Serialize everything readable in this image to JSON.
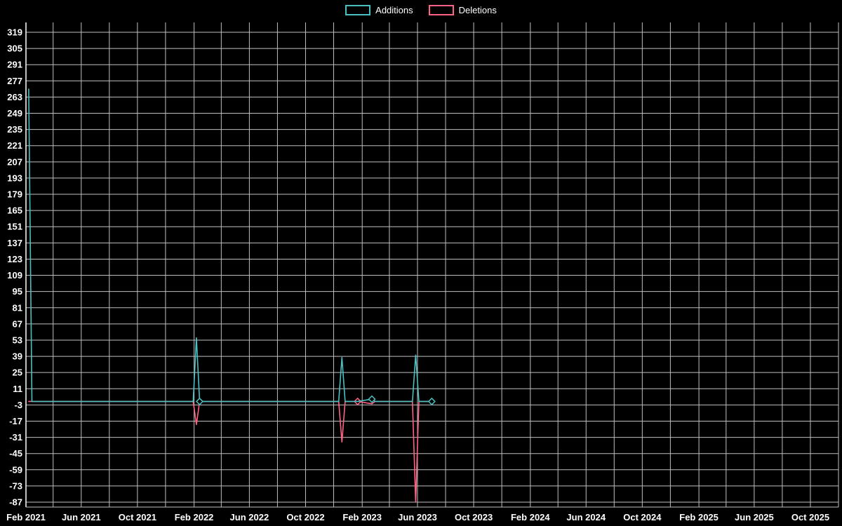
{
  "legend": {
    "items": [
      {
        "label": "Additions",
        "color": "#4bc0c0"
      },
      {
        "label": "Deletions",
        "color": "#ff6384"
      }
    ]
  },
  "chart_data": {
    "type": "line",
    "title": "",
    "legend_position": "top-center",
    "background_color": "#000000",
    "grid_color": "#bfbfbf",
    "axis_color": "#ffffff",
    "text_color": "#ffffff",
    "grid": true,
    "x_domain": [
      "2021-02-01",
      "2025-12-01"
    ],
    "x_tick_interval_months": 4,
    "x_grid_interval_months": 2,
    "x_tick_labels": [
      "Feb 2021",
      "Jun 2021",
      "Oct 2021",
      "Feb 2022",
      "Jun 2022",
      "Oct 2022",
      "Feb 2023",
      "Jun 2023",
      "Oct 2023",
      "Feb 2024",
      "Jun 2024",
      "Oct 2024",
      "Feb 2025",
      "Jun 2025",
      "Oct 2025"
    ],
    "y_ticks": [
      319,
      305,
      291,
      277,
      263,
      249,
      235,
      221,
      207,
      193,
      179,
      165,
      151,
      137,
      123,
      109,
      95,
      81,
      67,
      53,
      39,
      25,
      11,
      -3,
      -17,
      -31,
      -45,
      -59,
      -73,
      -87
    ],
    "ylim": [
      -91,
      328
    ],
    "series": [
      {
        "name": "Additions",
        "color": "#4bc0c0",
        "marker_shape": "diamond",
        "points": [
          [
            "2021-02-07",
            270
          ],
          [
            "2021-02-14",
            0
          ],
          [
            "2022-01-30",
            0
          ],
          [
            "2022-02-06",
            55
          ],
          [
            "2022-02-13",
            0
          ],
          [
            "2022-12-12",
            0
          ],
          [
            "2022-12-19",
            38
          ],
          [
            "2022-12-26",
            0
          ],
          [
            "2023-01-22",
            0
          ],
          [
            "2023-02-22",
            2
          ],
          [
            "2023-03-01",
            0
          ],
          [
            "2023-05-21",
            0
          ],
          [
            "2023-05-28",
            40
          ],
          [
            "2023-06-04",
            0
          ],
          [
            "2023-07-02",
            0
          ]
        ],
        "markers": [
          [
            "2022-02-13",
            0
          ],
          [
            "2023-02-22",
            2
          ],
          [
            "2023-07-02",
            0
          ]
        ]
      },
      {
        "name": "Deletions",
        "color": "#ff6384",
        "marker_shape": "diamond",
        "points": [
          [
            "2021-02-07",
            0
          ],
          [
            "2022-01-30",
            0
          ],
          [
            "2022-02-06",
            -20
          ],
          [
            "2022-02-13",
            0
          ],
          [
            "2022-12-12",
            0
          ],
          [
            "2022-12-19",
            -35
          ],
          [
            "2022-12-26",
            0
          ],
          [
            "2023-01-22",
            0
          ],
          [
            "2023-02-22",
            -2
          ],
          [
            "2023-03-01",
            0
          ],
          [
            "2023-05-21",
            0
          ],
          [
            "2023-05-28",
            -87
          ],
          [
            "2023-06-04",
            0
          ],
          [
            "2023-07-02",
            0
          ]
        ],
        "markers": [
          [
            "2023-01-22",
            0
          ]
        ]
      }
    ]
  }
}
